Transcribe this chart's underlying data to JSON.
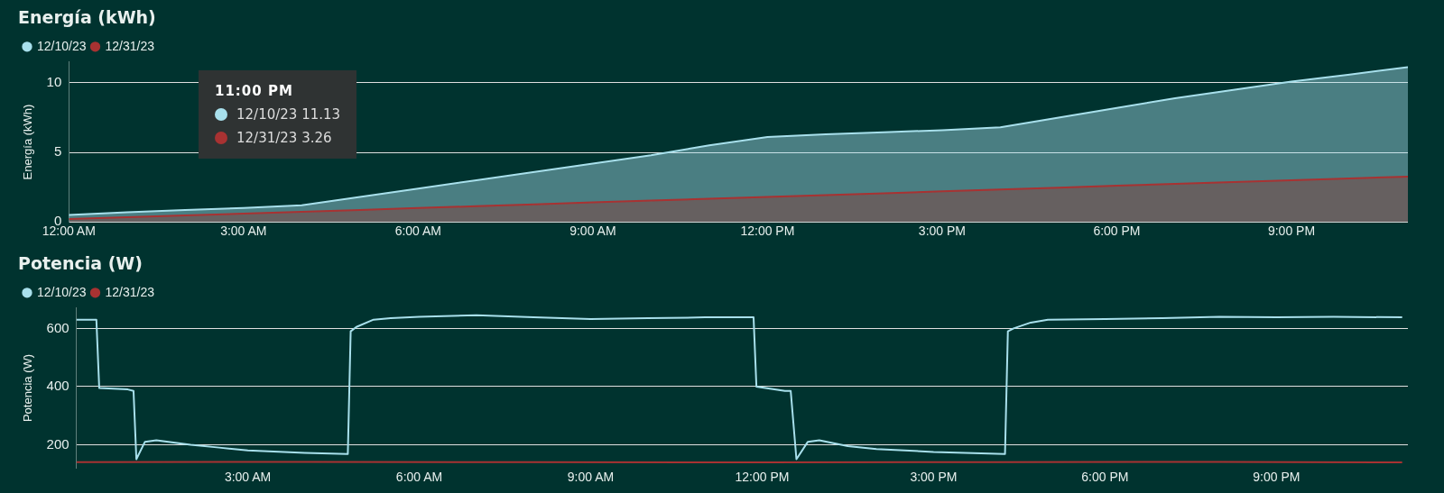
{
  "chart_data": [
    {
      "type": "area",
      "title": "Energía (kWh)",
      "ylabel": "Energía (kWh)",
      "legend": "top left",
      "grid": "y",
      "marker": "none",
      "x": [
        0,
        1,
        2,
        3,
        4,
        5,
        6,
        7,
        8,
        9,
        10,
        11,
        12,
        13,
        14,
        15,
        16,
        17,
        18,
        19,
        20,
        21,
        22,
        23
      ],
      "series": [
        {
          "name": "12/10/23",
          "color": "#a8e0ec",
          "values": [
            0.5,
            0.7,
            0.85,
            1.0,
            1.2,
            1.8,
            2.4,
            3.0,
            3.6,
            4.2,
            4.8,
            5.5,
            6.1,
            6.3,
            6.45,
            6.6,
            6.8,
            7.5,
            8.2,
            8.9,
            9.5,
            10.1,
            10.6,
            11.13
          ]
        },
        {
          "name": "12/31/23",
          "color": "#a83232",
          "values": [
            0.2,
            0.33,
            0.46,
            0.6,
            0.73,
            0.86,
            1.0,
            1.13,
            1.26,
            1.4,
            1.53,
            1.66,
            1.8,
            1.93,
            2.06,
            2.2,
            2.33,
            2.46,
            2.6,
            2.73,
            2.86,
            3.0,
            3.13,
            3.26
          ]
        }
      ],
      "xlim": [
        0,
        23
      ],
      "xticks": [
        {
          "value": 0,
          "label": "12:00 AM"
        },
        {
          "value": 3,
          "label": "3:00 AM"
        },
        {
          "value": 6,
          "label": "6:00 AM"
        },
        {
          "value": 9,
          "label": "9:00 AM"
        },
        {
          "value": 12,
          "label": "12:00 PM"
        },
        {
          "value": 15,
          "label": "3:00 PM"
        },
        {
          "value": 18,
          "label": "6:00 PM"
        },
        {
          "value": 21,
          "label": "9:00 PM"
        }
      ],
      "ylim": [
        0,
        11.5
      ],
      "yticks": [
        0,
        5,
        10
      ],
      "annotations": [
        "11:00 PM",
        "12/10/23 11.13",
        "12/31/23 3.26"
      ]
    },
    {
      "type": "line",
      "title": "Potencia (W)",
      "ylabel": "Potencia (W)",
      "legend": "top left",
      "grid": "y",
      "marker": "none",
      "series": [
        {
          "name": "12/10/23",
          "color": "#a8e0ec",
          "x": [
            0,
            0.35,
            0.4,
            0.9,
            1.0,
            1.05,
            1.2,
            1.4,
            2,
            2.5,
            3,
            4,
            4.75,
            4.8,
            4.9,
            5.2,
            5.5,
            6,
            7,
            8,
            9,
            10,
            11,
            11.85,
            11.9,
            12.4,
            12.5,
            12.6,
            12.8,
            13,
            13.5,
            14,
            15,
            16.25,
            16.3,
            16.4,
            16.7,
            17,
            18,
            19,
            20,
            21,
            22,
            23.2
          ],
          "values": [
            630,
            630,
            395,
            390,
            385,
            150,
            210,
            215,
            200,
            190,
            180,
            172,
            168,
            590,
            605,
            630,
            635,
            640,
            645,
            638,
            632,
            635,
            638,
            638,
            400,
            385,
            385,
            150,
            210,
            215,
            195,
            185,
            175,
            168,
            590,
            600,
            620,
            630,
            632,
            635,
            640,
            638,
            640,
            638
          ]
        },
        {
          "name": "12/31/23",
          "color": "#a83232",
          "x": [
            0,
            4,
            8,
            12,
            16,
            20,
            23.2
          ],
          "values": [
            140,
            141,
            140,
            139,
            140,
            141,
            139
          ]
        }
      ],
      "xlim": [
        0,
        23.3
      ],
      "xticks": [
        {
          "value": 3,
          "label": "3:00 AM"
        },
        {
          "value": 6,
          "label": "6:00 AM"
        },
        {
          "value": 9,
          "label": "9:00 AM"
        },
        {
          "value": 12,
          "label": "12:00 PM"
        },
        {
          "value": 15,
          "label": "3:00 PM"
        },
        {
          "value": 18,
          "label": "6:00 PM"
        },
        {
          "value": 21,
          "label": "9:00 PM"
        }
      ],
      "ylim": [
        120,
        670
      ],
      "yticks": [
        200,
        400,
        600
      ]
    }
  ]
}
